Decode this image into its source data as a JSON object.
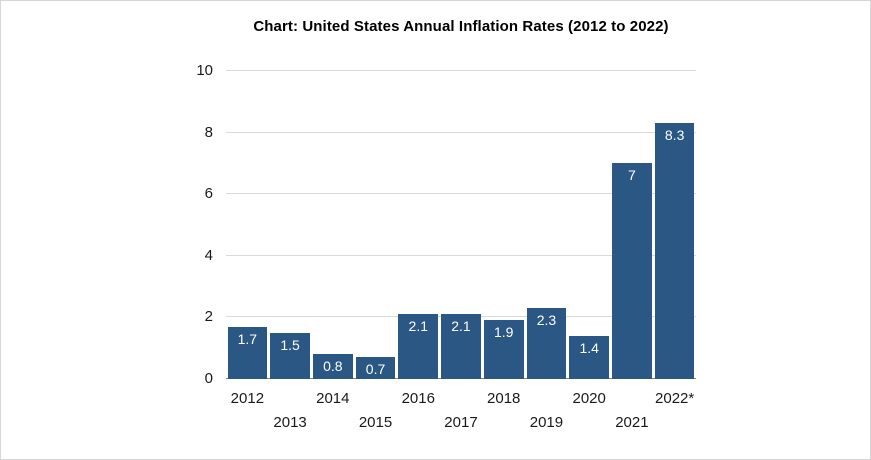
{
  "chart_data": {
    "type": "bar",
    "title": "Chart: United States Annual Inflation Rates (2012 to 2022)",
    "categories": [
      "2012",
      "2013",
      "2014",
      "2015",
      "2016",
      "2017",
      "2018",
      "2019",
      "2020",
      "2021",
      "2022*"
    ],
    "values": [
      1.7,
      1.5,
      0.8,
      0.7,
      2.1,
      2.1,
      1.9,
      2.3,
      1.4,
      7,
      8.3
    ],
    "value_labels": [
      "1.7",
      "1.5",
      "0.8",
      "0.7",
      "2.1",
      "2.1",
      "1.9",
      "2.3",
      "1.4",
      "7",
      "8.3"
    ],
    "xlabel": "",
    "ylabel": "",
    "ylim": [
      0,
      10
    ],
    "yticks": [
      0,
      2,
      4,
      6,
      8,
      10
    ],
    "grid": true,
    "legend": false,
    "x_tick_layout": "staggered",
    "colors": {
      "bar": "#2a5783",
      "bar_value_label": "#ffffff",
      "gridline": "#d9d9d9",
      "baseline": "#808080",
      "tick_text": "#1a1a1a",
      "title_text": "#000000",
      "background": "#ffffff"
    }
  }
}
